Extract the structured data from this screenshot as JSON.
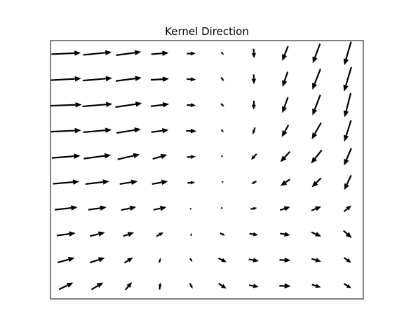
{
  "chart_data": {
    "type": "quiver",
    "title": "Kernel Direction",
    "xlabel": "",
    "ylabel": "",
    "axes_visible": false,
    "grid": false,
    "arrow_color": "#000000",
    "nx": 10,
    "ny": 10,
    "xlim": [
      -0.5,
      9.5
    ],
    "ylim": [
      -0.5,
      9.5
    ],
    "arrows": [
      {
        "x": 0,
        "y": 0,
        "u": 0.51,
        "v": 0.24
      },
      {
        "x": 1,
        "y": 0,
        "u": 0.42,
        "v": 0.25
      },
      {
        "x": 2,
        "y": 0,
        "u": 0.23,
        "v": 0.27
      },
      {
        "x": 3,
        "y": 0,
        "u": 0.03,
        "v": 0.25
      },
      {
        "x": 4,
        "y": 0,
        "u": 0.1,
        "v": -0.19
      },
      {
        "x": 5,
        "y": 0,
        "u": 0.28,
        "v": -0.19
      },
      {
        "x": 6,
        "y": 0,
        "u": 0.34,
        "v": -0.06
      },
      {
        "x": 7,
        "y": 0,
        "u": 0.41,
        "v": -0.01
      },
      {
        "x": 8,
        "y": 0,
        "u": 0.32,
        "v": -0.1
      },
      {
        "x": 9,
        "y": 0,
        "u": 0.26,
        "v": -0.16
      },
      {
        "x": 0,
        "y": 1,
        "u": 0.61,
        "v": 0.17
      },
      {
        "x": 1,
        "y": 1,
        "u": 0.53,
        "v": 0.17
      },
      {
        "x": 2,
        "y": 1,
        "u": 0.3,
        "v": 0.19
      },
      {
        "x": 3,
        "y": 1,
        "u": 0.05,
        "v": 0.17
      },
      {
        "x": 4,
        "y": 1,
        "u": 0.08,
        "v": -0.13
      },
      {
        "x": 5,
        "y": 1,
        "u": 0.29,
        "v": -0.14
      },
      {
        "x": 6,
        "y": 1,
        "u": 0.36,
        "v": -0.06
      },
      {
        "x": 7,
        "y": 1,
        "u": 0.4,
        "v": -0.02
      },
      {
        "x": 8,
        "y": 1,
        "u": 0.34,
        "v": -0.1
      },
      {
        "x": 9,
        "y": 1,
        "u": 0.26,
        "v": -0.18
      },
      {
        "x": 0,
        "y": 2,
        "u": 0.67,
        "v": 0.09
      },
      {
        "x": 1,
        "y": 2,
        "u": 0.53,
        "v": 0.13
      },
      {
        "x": 2,
        "y": 2,
        "u": 0.38,
        "v": 0.13
      },
      {
        "x": 3,
        "y": 2,
        "u": 0.25,
        "v": 0.14
      },
      {
        "x": 4,
        "y": 2,
        "u": 0.02,
        "v": 0.1
      },
      {
        "x": 5,
        "y": 2,
        "u": 0.18,
        "v": -0.08
      },
      {
        "x": 6,
        "y": 2,
        "u": 0.31,
        "v": -0.05
      },
      {
        "x": 7,
        "y": 2,
        "u": 0.36,
        "v": -0.06
      },
      {
        "x": 8,
        "y": 2,
        "u": 0.35,
        "v": -0.15
      },
      {
        "x": 9,
        "y": 2,
        "u": 0.3,
        "v": -0.26
      },
      {
        "x": 0,
        "y": 3,
        "u": 0.81,
        "v": 0.09
      },
      {
        "x": 1,
        "y": 3,
        "u": 0.65,
        "v": 0.09
      },
      {
        "x": 2,
        "y": 3,
        "u": 0.54,
        "v": 0.11
      },
      {
        "x": 3,
        "y": 3,
        "u": 0.47,
        "v": 0.1
      },
      {
        "x": 4,
        "y": 3,
        "u": 0.05,
        "v": 0.02
      },
      {
        "x": 5,
        "y": 3,
        "u": 0.03,
        "v": -0.02
      },
      {
        "x": 6,
        "y": 3,
        "u": 0.23,
        "v": 0.05
      },
      {
        "x": 7,
        "y": 3,
        "u": 0.36,
        "v": 0.12
      },
      {
        "x": 8,
        "y": 3,
        "u": 0.35,
        "v": 0.15
      },
      {
        "x": 9,
        "y": 3,
        "u": 0.26,
        "v": 0.22
      },
      {
        "x": 0,
        "y": 4,
        "u": 0.94,
        "v": 0.08
      },
      {
        "x": 1,
        "y": 4,
        "u": 0.85,
        "v": 0.1
      },
      {
        "x": 2,
        "y": 4,
        "u": 0.64,
        "v": 0.1
      },
      {
        "x": 3,
        "y": 4,
        "u": 0.57,
        "v": 0.1
      },
      {
        "x": 4,
        "y": 4,
        "u": 0.27,
        "v": 0.02
      },
      {
        "x": 5,
        "y": 4,
        "u": 0.0,
        "v": -0.05
      },
      {
        "x": 6,
        "y": 4,
        "u": -0.18,
        "v": -0.1
      },
      {
        "x": 7,
        "y": 4,
        "u": -0.34,
        "v": -0.24
      },
      {
        "x": 8,
        "y": 4,
        "u": -0.33,
        "v": -0.33
      },
      {
        "x": 9,
        "y": 4,
        "u": -0.25,
        "v": -0.53
      },
      {
        "x": 0,
        "y": 5,
        "u": 1.02,
        "v": 0.08
      },
      {
        "x": 1,
        "y": 5,
        "u": 0.97,
        "v": 0.13
      },
      {
        "x": 2,
        "y": 5,
        "u": 0.79,
        "v": 0.18
      },
      {
        "x": 3,
        "y": 5,
        "u": 0.52,
        "v": 0.15
      },
      {
        "x": 4,
        "y": 5,
        "u": 0.31,
        "v": 0.02
      },
      {
        "x": 5,
        "y": 5,
        "u": 0.02,
        "v": -0.02
      },
      {
        "x": 6,
        "y": 5,
        "u": -0.2,
        "v": -0.21
      },
      {
        "x": 7,
        "y": 5,
        "u": -0.34,
        "v": -0.37
      },
      {
        "x": 8,
        "y": 5,
        "u": -0.38,
        "v": -0.48
      },
      {
        "x": 9,
        "y": 5,
        "u": -0.26,
        "v": -0.62
      },
      {
        "x": 0,
        "y": 6,
        "u": 1.07,
        "v": 0.05
      },
      {
        "x": 1,
        "y": 6,
        "u": 1.02,
        "v": 0.09
      },
      {
        "x": 2,
        "y": 6,
        "u": 0.87,
        "v": 0.14
      },
      {
        "x": 3,
        "y": 6,
        "u": 0.62,
        "v": 0.08
      },
      {
        "x": 4,
        "y": 6,
        "u": 0.37,
        "v": -0.01
      },
      {
        "x": 5,
        "y": 6,
        "u": 0.09,
        "v": -0.09
      },
      {
        "x": 6,
        "y": 6,
        "u": -0.08,
        "v": -0.25
      },
      {
        "x": 7,
        "y": 6,
        "u": -0.24,
        "v": -0.43
      },
      {
        "x": 8,
        "y": 6,
        "u": -0.33,
        "v": -0.59
      },
      {
        "x": 9,
        "y": 6,
        "u": -0.24,
        "v": -0.76
      },
      {
        "x": 0,
        "y": 7,
        "u": 1.12,
        "v": 0.04
      },
      {
        "x": 1,
        "y": 7,
        "u": 1.07,
        "v": 0.09
      },
      {
        "x": 2,
        "y": 7,
        "u": 0.95,
        "v": 0.14
      },
      {
        "x": 3,
        "y": 7,
        "u": 0.66,
        "v": 0.08
      },
      {
        "x": 4,
        "y": 7,
        "u": 0.32,
        "v": -0.01
      },
      {
        "x": 5,
        "y": 7,
        "u": 0.12,
        "v": -0.11
      },
      {
        "x": 6,
        "y": 7,
        "u": -0.01,
        "v": -0.32
      },
      {
        "x": 7,
        "y": 7,
        "u": -0.2,
        "v": -0.56
      },
      {
        "x": 8,
        "y": 7,
        "u": -0.28,
        "v": -0.73
      },
      {
        "x": 9,
        "y": 7,
        "u": -0.22,
        "v": -0.86
      },
      {
        "x": 0,
        "y": 8,
        "u": 1.08,
        "v": 0.06
      },
      {
        "x": 1,
        "y": 8,
        "u": 1.05,
        "v": 0.09
      },
      {
        "x": 2,
        "y": 8,
        "u": 0.92,
        "v": 0.12
      },
      {
        "x": 3,
        "y": 8,
        "u": 0.65,
        "v": 0.04
      },
      {
        "x": 4,
        "y": 8,
        "u": 0.33,
        "v": -0.02
      },
      {
        "x": 5,
        "y": 8,
        "u": 0.11,
        "v": -0.13
      },
      {
        "x": 6,
        "y": 8,
        "u": 0.01,
        "v": -0.35
      },
      {
        "x": 7,
        "y": 8,
        "u": -0.18,
        "v": -0.54
      },
      {
        "x": 8,
        "y": 8,
        "u": -0.29,
        "v": -0.74
      },
      {
        "x": 9,
        "y": 8,
        "u": -0.26,
        "v": -0.87
      },
      {
        "x": 0,
        "y": 9,
        "u": 1.05,
        "v": 0.05
      },
      {
        "x": 1,
        "y": 9,
        "u": 1.02,
        "v": 0.1
      },
      {
        "x": 2,
        "y": 9,
        "u": 0.89,
        "v": 0.12
      },
      {
        "x": 3,
        "y": 9,
        "u": 0.62,
        "v": 0.05
      },
      {
        "x": 4,
        "y": 9,
        "u": 0.31,
        "v": 0.01
      },
      {
        "x": 5,
        "y": 9,
        "u": 0.09,
        "v": -0.1
      },
      {
        "x": 6,
        "y": 9,
        "u": 0.02,
        "v": -0.34
      },
      {
        "x": 7,
        "y": 9,
        "u": -0.21,
        "v": -0.53
      },
      {
        "x": 8,
        "y": 9,
        "u": -0.26,
        "v": -0.7
      },
      {
        "x": 9,
        "y": 9,
        "u": -0.24,
        "v": -0.84
      }
    ]
  }
}
